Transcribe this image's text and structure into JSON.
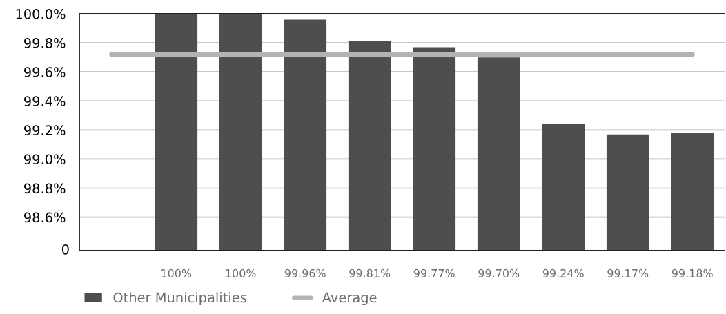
{
  "chart_data": {
    "type": "bar",
    "categories": [
      null,
      null,
      null,
      null,
      null,
      null,
      null,
      null,
      null,
      null
    ],
    "series": [
      {
        "name": "Other Municipalities",
        "type": "bar",
        "color": "#4d4e50",
        "values": [
          null,
          100,
          100,
          99.96,
          99.81,
          99.77,
          99.7,
          99.24,
          99.17,
          99.18
        ],
        "value_labels": [
          null,
          "100%",
          "100%",
          "99.96%",
          "99.81%",
          "99.77%",
          "99.70%",
          "99.24%",
          "99.17%",
          "99.18%"
        ]
      },
      {
        "name": "Average",
        "type": "line",
        "color": "#b1b3b5",
        "values": [
          99.72,
          99.72,
          99.72,
          99.72,
          99.72,
          99.72,
          99.72,
          99.72,
          99.72,
          99.72
        ]
      }
    ],
    "ylim": [
      98.37,
      100.0
    ],
    "annotations": [
      "0"
    ],
    "yticks": [
      {
        "value": 98.6,
        "label": "98.6%"
      },
      {
        "value": 98.8,
        "label": "98.8%"
      },
      {
        "value": 99.0,
        "label": "99.0%"
      },
      {
        "value": 99.2,
        "label": "99.2%"
      },
      {
        "value": 99.4,
        "label": "99.4%"
      },
      {
        "value": 99.6,
        "label": "99.6%"
      },
      {
        "value": 99.8,
        "label": "99.8%"
      },
      {
        "value": 100.0,
        "label": "100.0%"
      }
    ],
    "grid": "y",
    "legend": "bottom left",
    "marker": "none",
    "line_style": "solid"
  }
}
